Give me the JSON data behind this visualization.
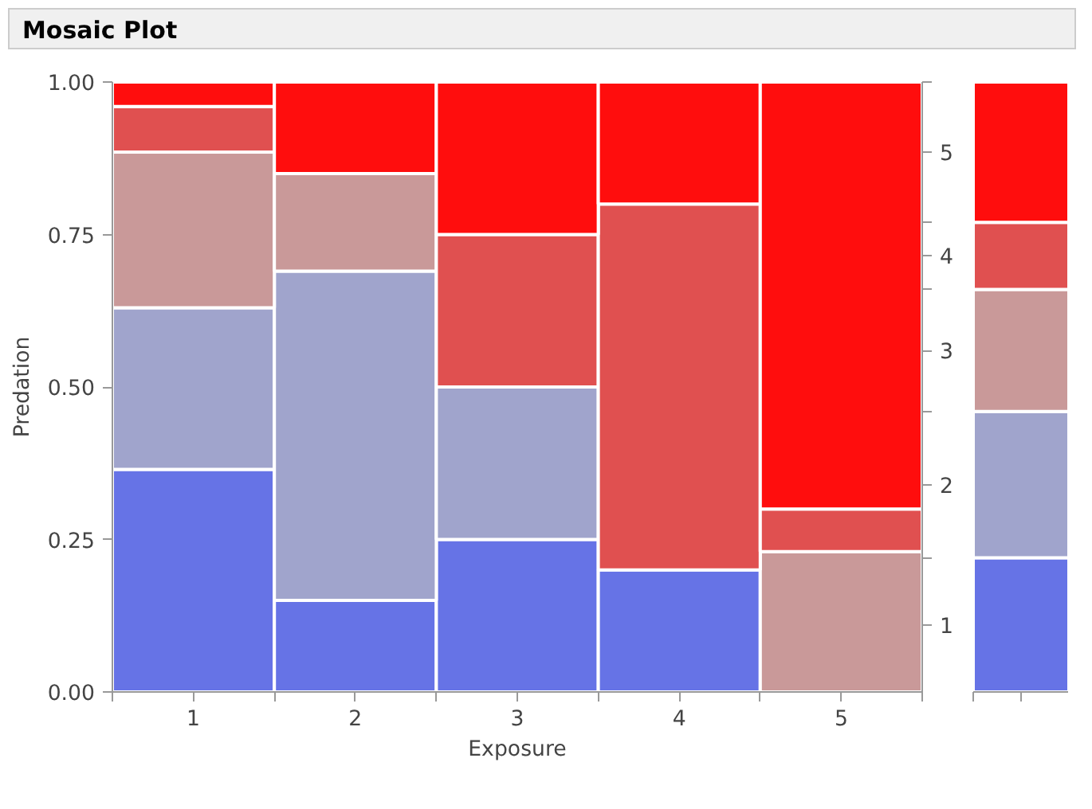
{
  "chart_data": [
    {
      "type": "bar",
      "stacked": true,
      "title": "Mosaic Plot",
      "xlabel": "Exposure",
      "ylabel": "Predation",
      "categories": [
        "1",
        "2",
        "3",
        "4",
        "5"
      ],
      "ylim": [
        0,
        1
      ],
      "yticks": [
        {
          "value": 0,
          "label": "0.00"
        },
        {
          "value": 0.25,
          "label": "0.25"
        },
        {
          "value": 0.5,
          "label": "0.50"
        },
        {
          "value": 0.75,
          "label": "0.75"
        },
        {
          "value": 1,
          "label": "1.00"
        }
      ],
      "series": [
        {
          "color": "#6673e6",
          "values": [
            0.365,
            0.15,
            0.25,
            0.2,
            0
          ]
        },
        {
          "color": "#a0a4cc",
          "values": [
            0.265,
            0.54,
            0.25,
            0,
            0
          ]
        },
        {
          "color": "#c99999",
          "values": [
            0.255,
            0.16,
            0,
            0,
            0.23
          ]
        },
        {
          "color": "#e05050",
          "values": [
            0.075,
            0,
            0.25,
            0.6,
            0.07
          ]
        },
        {
          "color": "#ff0d0d",
          "values": [
            0.04,
            0.15,
            0.25,
            0.2,
            0.7
          ]
        }
      ]
    },
    {
      "type": "bar",
      "stacked": true,
      "categories": [
        null
      ],
      "ylim": [
        0,
        1
      ],
      "series": [
        {
          "name": "1",
          "color": "#6673e6",
          "values": [
            0.22
          ]
        },
        {
          "name": "2",
          "color": "#a0a4cc",
          "values": [
            0.24
          ]
        },
        {
          "name": "3",
          "color": "#c99999",
          "values": [
            0.2
          ]
        },
        {
          "name": "4",
          "color": "#e05050",
          "values": [
            0.11
          ]
        },
        {
          "name": "5",
          "color": "#ff0d0d",
          "values": [
            0.23
          ]
        }
      ]
    }
  ]
}
